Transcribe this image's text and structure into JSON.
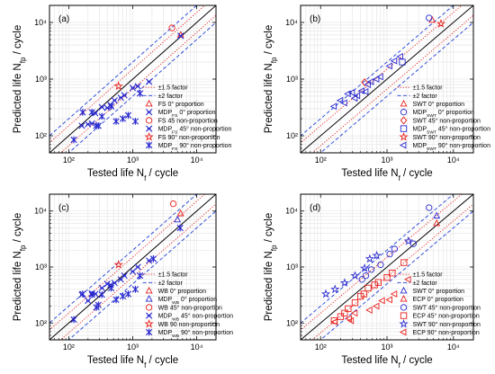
{
  "chart_data": [
    {
      "type": "scatter",
      "panel_label": "(a)",
      "xlabel": "Tested life N",
      "xlabel_sub": "f",
      "xlabel_tail": " / cycle",
      "ylabel": "Predicted life N",
      "ylabel_sub": "fp",
      "ylabel_tail": " / cycle",
      "x_scale": "log",
      "y_scale": "log",
      "xlim": [
        50,
        20000
      ],
      "ylim": [
        50,
        20000
      ],
      "x_tick_labels": [
        "10²",
        "10³",
        "10⁴"
      ],
      "y_tick_labels": [
        "10²",
        "10³",
        "10⁴"
      ],
      "grid": true,
      "legend_position": "bottom-right",
      "bands": [
        {
          "name": "±1.5 factor",
          "factor": 1.5,
          "style": "dotted",
          "color": "#e8201c"
        },
        {
          "name": "±2 factor",
          "factor": 2,
          "style": "dashed",
          "color": "#1f3fd6"
        }
      ],
      "series": [
        {
          "name": "FS 0° proportion",
          "marker": "triangle",
          "color": "#e8201c",
          "points": [
            [
              5600,
              6000
            ]
          ]
        },
        {
          "name": "MDPFS 0° proportion",
          "name_main": "MDP",
          "name_sub": "FS",
          "name_tail": " 0° proportion",
          "marker": "x",
          "color": "#2a2ad0",
          "points": [
            [
              5600,
              5800
            ]
          ]
        },
        {
          "name": "FS 45 non-proportion",
          "marker": "circle",
          "color": "#e8201c",
          "points": [
            [
              4100,
              8000
            ]
          ]
        },
        {
          "name": "MDPFS 45° non-proportion",
          "name_main": "MDP",
          "name_sub": "FS",
          "name_tail": " 45° non-proportion",
          "marker": "x",
          "color": "#2a2ad0",
          "points": [
            [
              160,
              150
            ],
            [
              200,
              160
            ],
            [
              230,
              165
            ],
            [
              260,
              250
            ],
            [
              330,
              320
            ],
            [
              400,
              310
            ],
            [
              450,
              350
            ],
            [
              520,
              420
            ],
            [
              650,
              470
            ],
            [
              740,
              520
            ],
            [
              1000,
              700
            ],
            [
              1200,
              750
            ],
            [
              1800,
              900
            ]
          ]
        },
        {
          "name": "FS 90° non-proportion",
          "marker": "star",
          "color": "#e8201c",
          "points": [
            [
              600,
              750
            ]
          ]
        },
        {
          "name": "MDPFS 90° non-proportion",
          "name_main": "MDP",
          "name_sub": "FS",
          "name_tail": " 90° non-proportion",
          "marker": "asterisk",
          "color": "#2a2ad0",
          "points": [
            [
              120,
              85
            ],
            [
              165,
              260
            ],
            [
              230,
              260
            ],
            [
              270,
              150
            ],
            [
              290,
              150
            ],
            [
              330,
              220
            ],
            [
              460,
              330
            ],
            [
              550,
              180
            ],
            [
              700,
              200
            ],
            [
              850,
              230
            ],
            [
              1100,
              180
            ],
            [
              1300,
              560
            ]
          ]
        }
      ]
    },
    {
      "type": "scatter",
      "panel_label": "(b)",
      "xlabel": "Tested life N",
      "xlabel_sub": "f",
      "xlabel_tail": " / cycle",
      "ylabel": "Predicted life N",
      "ylabel_sub": "fp",
      "ylabel_tail": " / cycle",
      "x_scale": "log",
      "y_scale": "log",
      "xlim": [
        50,
        20000
      ],
      "ylim": [
        50,
        20000
      ],
      "x_tick_labels": [
        "10²",
        "10³",
        "10⁴"
      ],
      "y_tick_labels": [
        "10²",
        "10³",
        "10⁴"
      ],
      "grid": true,
      "legend_position": "bottom-right",
      "bands": [
        {
          "name": "±1.5 factor",
          "factor": 1.5,
          "style": "dotted",
          "color": "#e8201c"
        },
        {
          "name": "±2 factor",
          "factor": 2,
          "style": "dashed",
          "color": "#1f3fd6"
        }
      ],
      "series": [
        {
          "name": "SWT 0° proportion",
          "marker": "triangle",
          "color": "#e8201c",
          "points": [
            [
              4800,
              11000
            ]
          ]
        },
        {
          "name": "MDPSWT 0° proportion",
          "name_main": "MDP",
          "name_sub": "SWT",
          "name_tail": " 0° proportion",
          "marker": "circle",
          "color": "#2a2ad0",
          "points": [
            [
              4300,
              12000
            ]
          ]
        },
        {
          "name": "SWT 45° non-proportion",
          "marker": "diamond",
          "color": "#e8201c",
          "points": [
            [
              460,
              880
            ]
          ]
        },
        {
          "name": "MDPSWT 45° non-proportion",
          "name_main": "MDP",
          "name_sub": "SWT",
          "name_tail": " 45° non-proportion",
          "marker": "square",
          "color": "#2a2ad0",
          "points": [
            [
              1700,
              2000
            ]
          ]
        },
        {
          "name": "SWT 90° non-proportion",
          "marker": "star",
          "color": "#e8201c",
          "points": [
            [
              6500,
              9500
            ]
          ]
        },
        {
          "name": "MDPSWT 90° non-proportion",
          "name_main": "MDP",
          "name_sub": "SWT",
          "name_tail": " 90° non-proportion",
          "marker": "triangle-left",
          "color": "#2a2ad0",
          "points": [
            [
              160,
              330
            ],
            [
              200,
              420
            ],
            [
              230,
              380
            ],
            [
              260,
              550
            ],
            [
              300,
              580
            ],
            [
              330,
              460
            ],
            [
              360,
              510
            ],
            [
              420,
              620
            ],
            [
              480,
              600
            ],
            [
              520,
              800
            ],
            [
              580,
              900
            ],
            [
              700,
              1000
            ],
            [
              800,
              1100
            ],
            [
              1100,
              1700
            ],
            [
              1300,
              2100
            ],
            [
              1600,
              2500
            ]
          ]
        }
      ]
    },
    {
      "type": "scatter",
      "panel_label": "(c)",
      "xlabel": "Tested life N",
      "xlabel_sub": "f",
      "xlabel_tail": " / cycle",
      "ylabel": "Predicted life N",
      "ylabel_sub": "fp",
      "ylabel_tail": " / cycle",
      "x_scale": "log",
      "y_scale": "log",
      "xlim": [
        50,
        20000
      ],
      "ylim": [
        50,
        20000
      ],
      "x_tick_labels": [
        "10²",
        "10³",
        "10⁴"
      ],
      "y_tick_labels": [
        "10²",
        "10³",
        "10⁴"
      ],
      "grid": true,
      "legend_position": "bottom-right",
      "bands": [
        {
          "name": "±1.5 factor",
          "factor": 1.5,
          "style": "dotted",
          "color": "#e8201c"
        },
        {
          "name": "±2 factor",
          "factor": 2,
          "style": "dashed",
          "color": "#1f3fd6"
        }
      ],
      "series": [
        {
          "name": "WB 0° proportion",
          "marker": "triangle",
          "color": "#e8201c",
          "points": [
            [
              5600,
              9000
            ]
          ]
        },
        {
          "name": "MDPWB 0° proportion",
          "name_main": "MDP",
          "name_sub": "WB",
          "name_tail": " 0° proportion",
          "marker": "triangle",
          "color": "#2a2ad0",
          "points": [
            [
              5000,
              7000
            ]
          ]
        },
        {
          "name": "WB 45° non-proportion",
          "marker": "circle",
          "color": "#e8201c",
          "points": [
            [
              4300,
              13500
            ]
          ]
        },
        {
          "name": "MDPWB 45° non-proportion",
          "name_main": "MDP",
          "name_sub": "WB",
          "name_tail": " 45° non-proportion",
          "marker": "x",
          "color": "#2a2ad0",
          "points": [
            [
              160,
              320
            ],
            [
              200,
              250
            ],
            [
              230,
              340
            ],
            [
              260,
              330
            ],
            [
              330,
              420
            ],
            [
              400,
              500
            ],
            [
              450,
              480
            ],
            [
              520,
              520
            ],
            [
              650,
              600
            ],
            [
              740,
              700
            ],
            [
              1000,
              830
            ],
            [
              1200,
              1000
            ],
            [
              1800,
              1300
            ]
          ]
        },
        {
          "name": "WB 90 non-proportion",
          "marker": "star",
          "color": "#e8201c",
          "points": [
            [
              600,
              1100
            ]
          ]
        },
        {
          "name": "MDPWB 90° non-proportion",
          "name_main": "MDP",
          "name_sub": "WB",
          "name_tail": " 90° non-proportion",
          "marker": "asterisk",
          "color": "#2a2ad0",
          "points": [
            [
              120,
              115
            ],
            [
              165,
              330
            ],
            [
              230,
              320
            ],
            [
              270,
              190
            ],
            [
              290,
              210
            ],
            [
              330,
              320
            ],
            [
              460,
              420
            ],
            [
              550,
              260
            ],
            [
              700,
              300
            ],
            [
              850,
              330
            ],
            [
              1100,
              400
            ],
            [
              1300,
              700
            ],
            [
              2100,
              1400
            ],
            [
              5500,
              5000
            ]
          ]
        }
      ]
    },
    {
      "type": "scatter",
      "panel_label": "(d)",
      "xlabel": "Tested life N",
      "xlabel_sub": "f",
      "xlabel_tail": " / cycle",
      "ylabel": "Predicted life N",
      "ylabel_sub": "fp",
      "ylabel_tail": " / cycle",
      "x_scale": "log",
      "y_scale": "log",
      "xlim": [
        50,
        20000
      ],
      "ylim": [
        50,
        20000
      ],
      "x_tick_labels": [
        "10²",
        "10³",
        "10⁴"
      ],
      "y_tick_labels": [
        "10²",
        "10³",
        "10⁴"
      ],
      "grid": true,
      "legend_position": "bottom-right",
      "bands": [
        {
          "name": "±1.5 factor",
          "factor": 1.5,
          "style": "dotted",
          "color": "#e8201c"
        },
        {
          "name": "±2 factor",
          "factor": 2,
          "style": "dashed",
          "color": "#1f3fd6"
        }
      ],
      "series": [
        {
          "name": "SWT 0° proportion",
          "marker": "triangle",
          "color": "#2a2ad0",
          "points": [
            [
              5600,
              8200
            ]
          ]
        },
        {
          "name": "ECP 0° proportion",
          "marker": "triangle",
          "color": "#e8201c",
          "points": [
            [
              5600,
              6000
            ]
          ]
        },
        {
          "name": "SWT 45° non-proportion",
          "marker": "circle",
          "color": "#2a2ad0",
          "points": [
            [
              4300,
              11500
            ],
            [
              2500,
              2600
            ],
            [
              1100,
              1700
            ],
            [
              1300,
              2100
            ],
            [
              800,
              1100
            ],
            [
              580,
              900
            ],
            [
              480,
              700
            ],
            [
              420,
              600
            ]
          ]
        },
        {
          "name": "ECP 45° non-proportion",
          "marker": "square",
          "color": "#e8201c",
          "points": [
            [
              160,
              110
            ],
            [
              200,
              130
            ],
            [
              230,
              150
            ],
            [
              260,
              180
            ],
            [
              330,
              230
            ],
            [
              400,
              300
            ],
            [
              450,
              330
            ],
            [
              520,
              420
            ],
            [
              650,
              480
            ],
            [
              740,
              530
            ],
            [
              1000,
              650
            ],
            [
              1200,
              780
            ],
            [
              1800,
              1200
            ]
          ]
        },
        {
          "name": "SWT 90° non-proportion",
          "marker": "star",
          "color": "#2a2ad0",
          "points": [
            [
              120,
              330
            ],
            [
              165,
              400
            ],
            [
              230,
              520
            ],
            [
              330,
              700
            ],
            [
              460,
              950
            ],
            [
              550,
              1400
            ],
            [
              700,
              1600
            ],
            [
              2100,
              2900
            ]
          ]
        },
        {
          "name": "ECP 90° non-proportion",
          "marker": "triangle-left",
          "color": "#e8201c",
          "points": [
            [
              165,
              105
            ],
            [
              270,
              120
            ],
            [
              290,
              110
            ],
            [
              330,
              150
            ],
            [
              550,
              170
            ],
            [
              700,
              200
            ],
            [
              850,
              250
            ],
            [
              1100,
              260
            ],
            [
              1300,
              330
            ],
            [
              2100,
              600
            ]
          ]
        }
      ]
    }
  ]
}
